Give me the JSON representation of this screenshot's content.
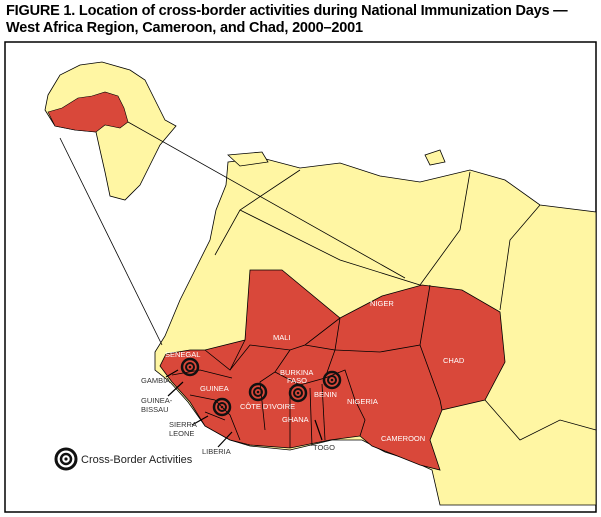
{
  "figure": {
    "title_line1": "FIGURE 1. Location of cross-border activities during National Immunization Days —",
    "title_line2": "West Africa Region, Cameroon, and Chad, 2000–2001"
  },
  "colors": {
    "highlight": "#d9483a",
    "land": "#fff6a3",
    "water": "#ffffff"
  },
  "countries_inside": [
    "MALI",
    "NIGER",
    "CHAD",
    "SENEGAL",
    "GUINEA",
    "BURKINA FASO",
    "CÔTE D'IVOIRE",
    "GHANA",
    "BENIN",
    "NIGERIA",
    "CAMEROON"
  ],
  "labels": {
    "mali": "MALI",
    "niger": "NIGER",
    "chad": "CHAD",
    "senegal": "SENEGAL",
    "guinea": "GUINEA",
    "burkina1": "BURKINA",
    "burkina2": "FASO",
    "cote": "CÔTE D'IVOIRE",
    "ghana": "GHANA",
    "benin": "BENIN",
    "nigeria": "NIGERIA",
    "cameroon": "CAMEROON",
    "gambia": "GAMBIA",
    "gb1": "GUINEA-",
    "gb2": "BISSAU",
    "sl1": "SIERRA",
    "sl2": "LEONE",
    "liberia": "LIBERIA",
    "togo": "TOGO"
  },
  "legend": {
    "icon": "target-icon",
    "label": "Cross-Border Activities"
  }
}
